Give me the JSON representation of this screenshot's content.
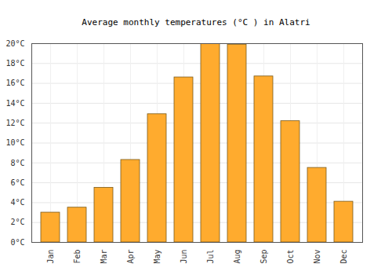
{
  "chart_data": {
    "type": "bar",
    "title": "Average monthly temperatures (°C ) in Alatri",
    "categories": [
      "Jan",
      "Feb",
      "Mar",
      "Apr",
      "May",
      "Jun",
      "Jul",
      "Aug",
      "Sep",
      "Oct",
      "Nov",
      "Dec"
    ],
    "values": [
      3.0,
      3.5,
      5.5,
      8.3,
      12.9,
      16.6,
      20.0,
      19.9,
      16.7,
      12.2,
      7.5,
      4.1
    ],
    "color": "#ffab2e",
    "ylim": [
      0,
      20
    ],
    "yticks": [
      {
        "value": 0,
        "label": "0°C"
      },
      {
        "value": 2,
        "label": "2°C"
      },
      {
        "value": 4,
        "label": "4°C"
      },
      {
        "value": 6,
        "label": "6°C"
      },
      {
        "value": 8,
        "label": "8°C"
      },
      {
        "value": 10,
        "label": "10°C"
      },
      {
        "value": 12,
        "label": "12°C"
      },
      {
        "value": 14,
        "label": "14°C"
      },
      {
        "value": 16,
        "label": "16°C"
      },
      {
        "value": 18,
        "label": "18°C"
      },
      {
        "value": 20,
        "label": "20°C"
      }
    ],
    "grid": true
  }
}
